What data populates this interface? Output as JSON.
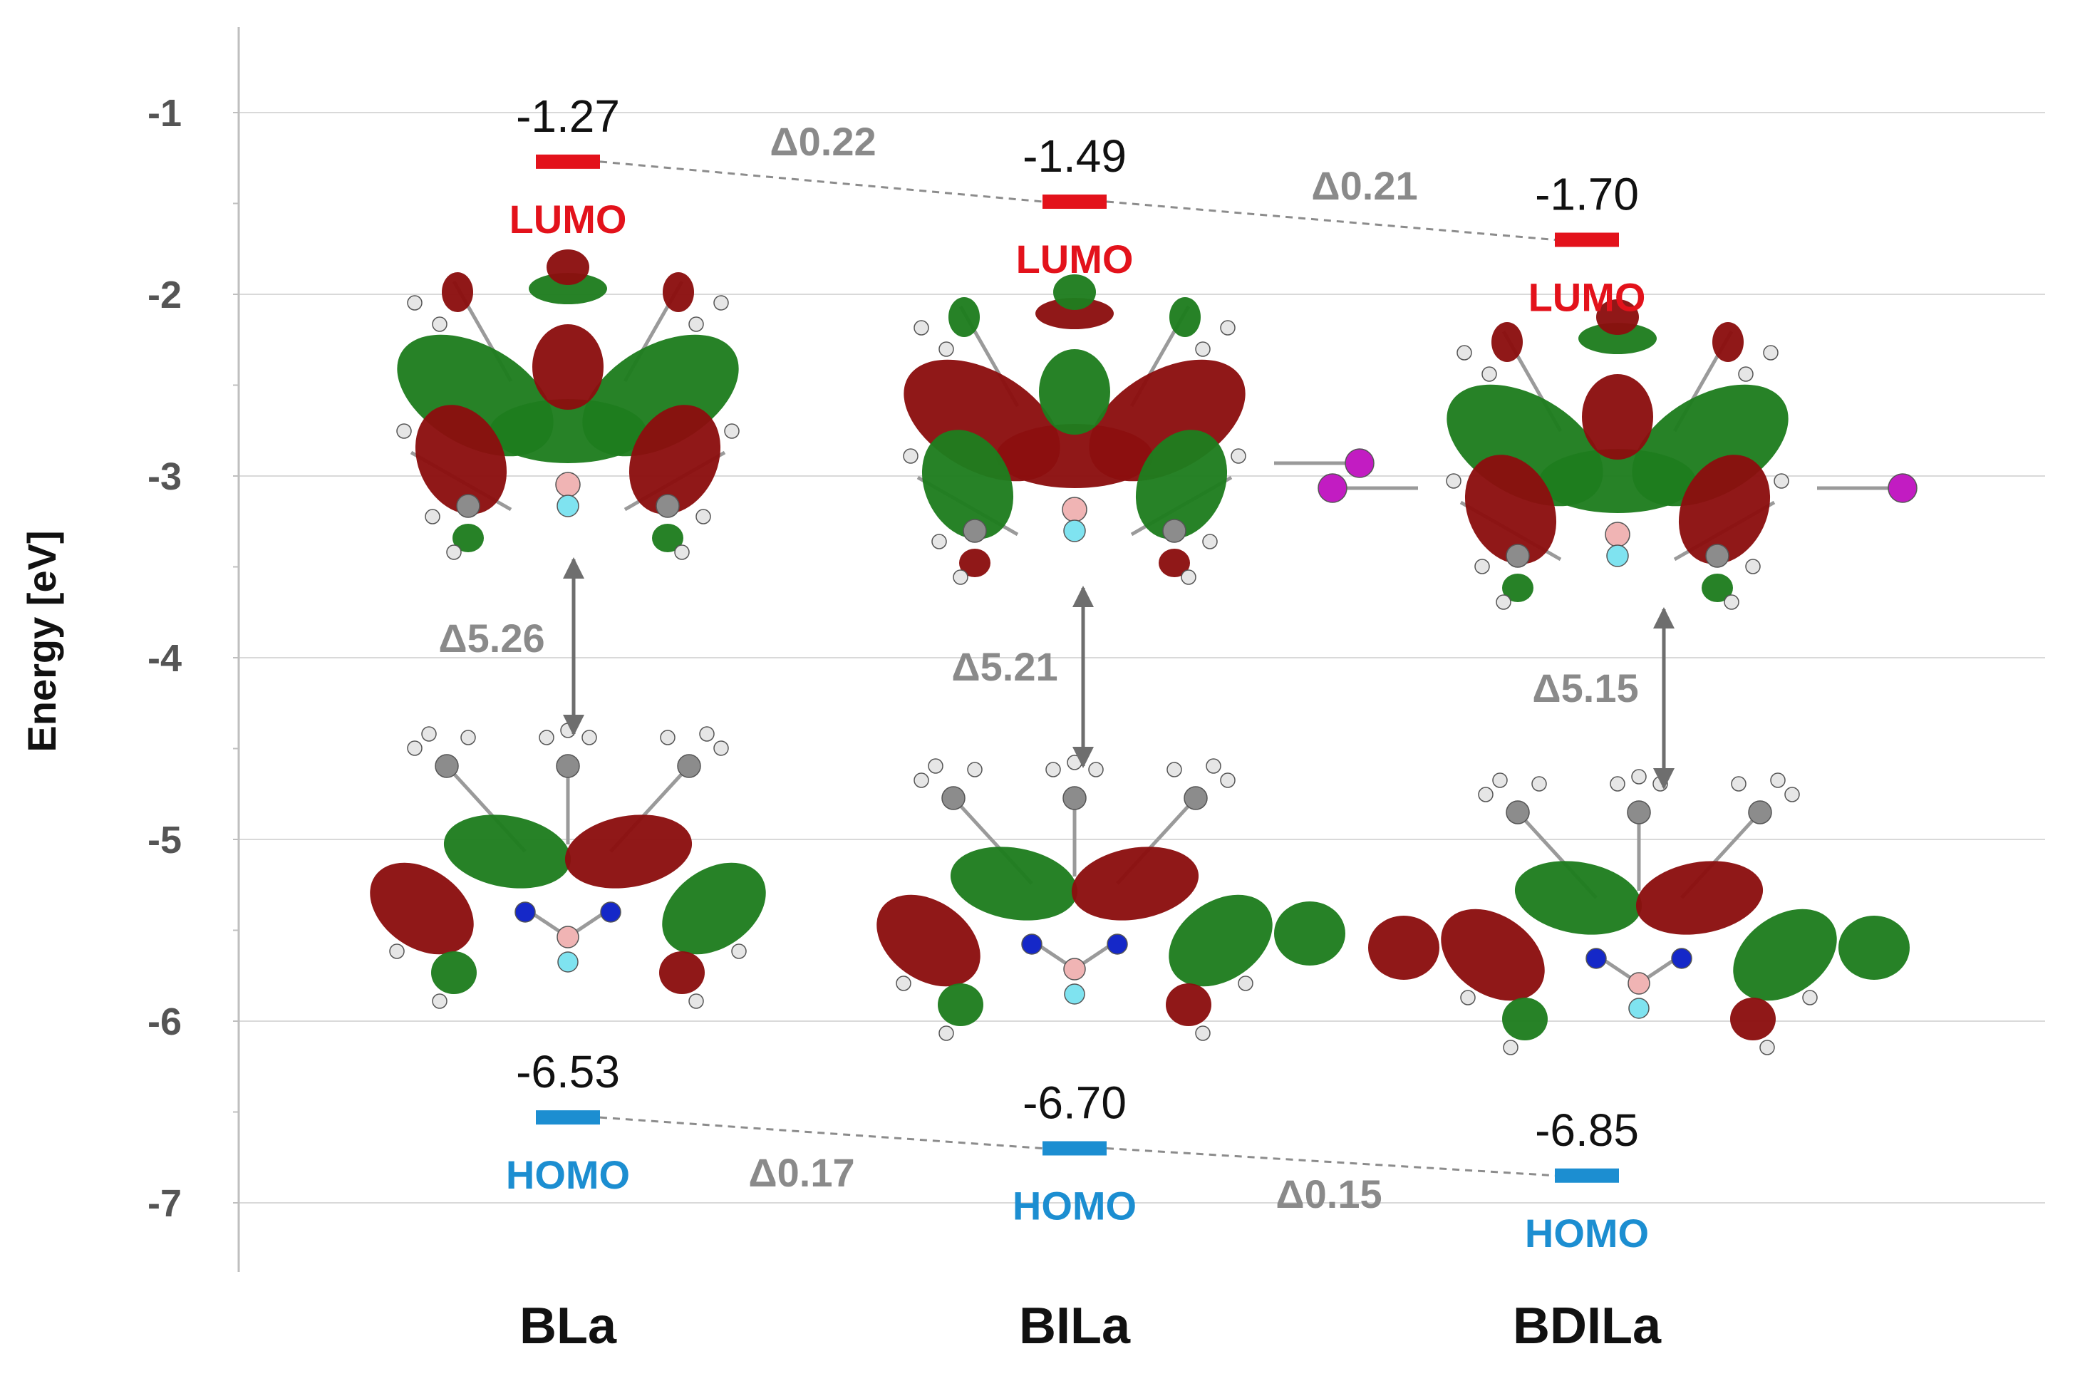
{
  "chart_data": {
    "type": "energy_level_diagram",
    "title": "",
    "xlabel": "",
    "ylabel": "Energy [eV]",
    "ylim": [
      -7.4,
      -0.55
    ],
    "yticks": [
      -1,
      -2,
      -3,
      -4,
      -5,
      -6,
      -7
    ],
    "ytick_labels": [
      "-1",
      "-2",
      "-3",
      "-4",
      "-5",
      "-6",
      "-7"
    ],
    "grid": true,
    "categories": [
      "BLa",
      "BILa",
      "BDILa"
    ],
    "series": [
      {
        "name": "LUMO",
        "color": "#e3121b",
        "values": [
          -1.27,
          -1.49,
          -1.7
        ],
        "labels": [
          "-1.27",
          "-1.49",
          "-1.70"
        ]
      },
      {
        "name": "HOMO",
        "color": "#1c8ed1",
        "values": [
          -6.53,
          -6.7,
          -6.85
        ],
        "labels": [
          "-6.53",
          "-6.70",
          "-6.85"
        ]
      }
    ],
    "gap_labels": [
      "Δ5.26",
      "Δ5.21",
      "Δ5.15"
    ],
    "lumo_shift_labels": [
      "Δ0.22",
      "Δ0.21"
    ],
    "homo_shift_labels": [
      "Δ0.17",
      "Δ0.15"
    ],
    "orbital_colors": {
      "positive": "#1e7d1e",
      "negative": "#8b0f0f",
      "carbon": "#8c8c8c",
      "hydrogen": "#e6e6e6",
      "nitrogen": "#1528c8",
      "boron": "#f0b4b4",
      "fluorine": "#7fe3f0",
      "iodine": "#c21cc2"
    },
    "structure_names": [
      "bla-orbitals",
      "bila-orbitals",
      "bdila-orbitals"
    ]
  }
}
